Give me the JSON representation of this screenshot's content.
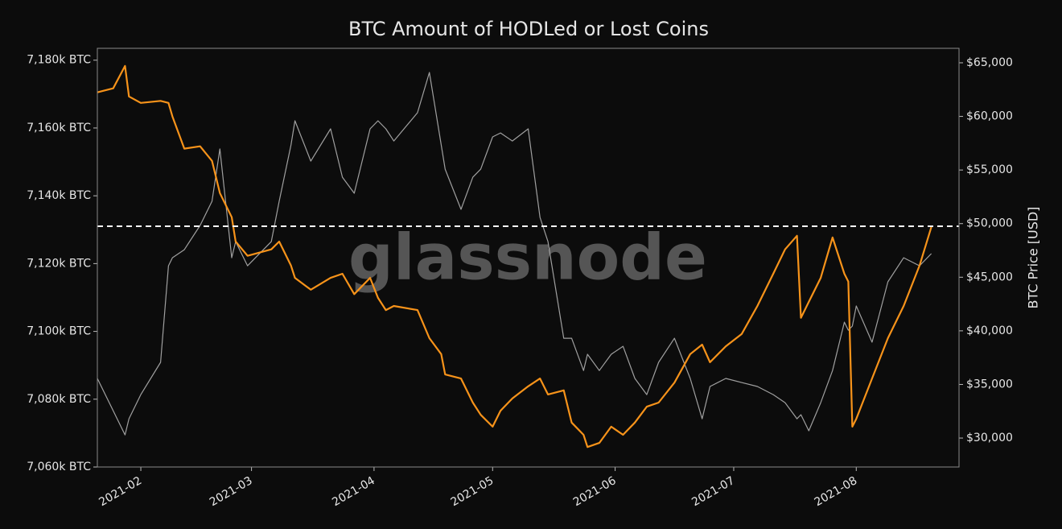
{
  "chart_data": {
    "type": "line",
    "title": "BTC Amount of HODLed or Lost Coins",
    "watermark": "glassnode",
    "y2label": "BTC Price [USD]",
    "x": [
      "2021-01-21",
      "2021-01-25",
      "2021-01-28",
      "2021-01-29",
      "2021-02-01",
      "2021-02-06",
      "2021-02-08",
      "2021-02-09",
      "2021-02-12",
      "2021-02-16",
      "2021-02-19",
      "2021-02-21",
      "2021-02-24",
      "2021-02-25",
      "2021-02-28",
      "2021-03-06",
      "2021-03-08",
      "2021-03-11",
      "2021-03-12",
      "2021-03-16",
      "2021-03-21",
      "2021-03-24",
      "2021-03-27",
      "2021-03-31",
      "2021-04-02",
      "2021-04-04",
      "2021-04-06",
      "2021-04-12",
      "2021-04-15",
      "2021-04-18",
      "2021-04-19",
      "2021-04-23",
      "2021-04-26",
      "2021-04-28",
      "2021-05-01",
      "2021-05-03",
      "2021-05-06",
      "2021-05-10",
      "2021-05-13",
      "2021-05-15",
      "2021-05-19",
      "2021-05-21",
      "2021-05-24",
      "2021-05-25",
      "2021-05-28",
      "2021-05-31",
      "2021-06-03",
      "2021-06-06",
      "2021-06-09",
      "2021-06-12",
      "2021-06-16",
      "2021-06-20",
      "2021-06-23",
      "2021-06-25",
      "2021-06-29",
      "2021-07-03",
      "2021-07-07",
      "2021-07-11",
      "2021-07-14",
      "2021-07-17",
      "2021-07-18",
      "2021-07-20",
      "2021-07-23",
      "2021-07-26",
      "2021-07-29",
      "2021-07-30",
      "2021-07-31",
      "2021-08-01",
      "2021-08-05",
      "2021-08-09",
      "2021-08-13",
      "2021-08-17",
      "2021-08-20"
    ],
    "series": [
      {
        "name": "BTC Price [USD]",
        "color": "#a0a0a0",
        "axis": "y2",
        "values": [
          35560,
          32550,
          30300,
          31800,
          34050,
          37060,
          46070,
          46820,
          47570,
          49830,
          52080,
          56960,
          46820,
          48320,
          46070,
          48320,
          52080,
          57340,
          59590,
          55830,
          58840,
          54330,
          52830,
          58840,
          59590,
          58840,
          57710,
          60340,
          64100,
          57340,
          55080,
          51330,
          54330,
          55080,
          58090,
          58460,
          57710,
          58840,
          50580,
          48320,
          39310,
          39310,
          36300,
          37810,
          36300,
          37810,
          38560,
          35560,
          34050,
          37060,
          39310,
          35560,
          31800,
          34810,
          35560,
          35180,
          34810,
          34050,
          33300,
          31800,
          32180,
          30680,
          33300,
          36300,
          40810,
          40060,
          40440,
          42320,
          38940,
          44570,
          46820,
          46070,
          47200
        ]
      },
      {
        "name": "HODLed or Lost Coins",
        "color": "#f7931a",
        "axis": "y",
        "values": [
          7170.5,
          7171.7,
          7178.3,
          7169.3,
          7167.4,
          7168,
          7167.4,
          7163.4,
          7153.9,
          7154.6,
          7150.3,
          7140.8,
          7133.7,
          7126.5,
          7122.3,
          7124.2,
          7126.5,
          7119.4,
          7115.8,
          7112.3,
          7115.8,
          7117,
          7111,
          7115.8,
          7109.9,
          7106.3,
          7107.5,
          7106.3,
          7098,
          7093.3,
          7087.3,
          7086.1,
          7079,
          7075.4,
          7071.9,
          7076.6,
          7080.2,
          7083.8,
          7086.1,
          7081.4,
          7082.6,
          7073.1,
          7069.5,
          7065.9,
          7067.1,
          7071.9,
          7069.5,
          7073.1,
          7077.8,
          7079,
          7084.9,
          7093.3,
          7096.1,
          7090.9,
          7095.6,
          7099.2,
          7107.5,
          7117,
          7124.2,
          7128.2,
          7104,
          7108.7,
          7115.8,
          7127.7,
          7117,
          7114.7,
          7071.9,
          7074.2,
          7086.1,
          7098,
          7107.5,
          7119.4,
          7130.8
        ]
      }
    ],
    "reference_line": 7131,
    "xlim": [
      "2021-01-21",
      "2021-08-27"
    ],
    "xticks": [
      {
        "value": "2021-02-01",
        "label": "2021-02"
      },
      {
        "value": "2021-03-01",
        "label": "2021-03"
      },
      {
        "value": "2021-04-01",
        "label": "2021-04"
      },
      {
        "value": "2021-05-01",
        "label": "2021-05"
      },
      {
        "value": "2021-06-01",
        "label": "2021-06"
      },
      {
        "value": "2021-07-01",
        "label": "2021-07"
      },
      {
        "value": "2021-08-01",
        "label": "2021-08"
      }
    ],
    "ylim": [
      7060,
      7183.5
    ],
    "yticks": [
      {
        "value": 7060,
        "label": "7,060k BTC"
      },
      {
        "value": 7080,
        "label": "7,080k BTC"
      },
      {
        "value": 7100,
        "label": "7,100k BTC"
      },
      {
        "value": 7120,
        "label": "7,120k BTC"
      },
      {
        "value": 7140,
        "label": "7,140k BTC"
      },
      {
        "value": 7160,
        "label": "7,160k BTC"
      },
      {
        "value": 7180,
        "label": "7,180k BTC"
      }
    ],
    "y2lim": [
      27300,
      66350
    ],
    "y2ticks": [
      {
        "value": 30000,
        "label": "$30,000"
      },
      {
        "value": 35000,
        "label": "$35,000"
      },
      {
        "value": 40000,
        "label": "$40,000"
      },
      {
        "value": 45000,
        "label": "$45,000"
      },
      {
        "value": 50000,
        "label": "$50,000"
      },
      {
        "value": 55000,
        "label": "$55,000"
      },
      {
        "value": 60000,
        "label": "$60,000"
      },
      {
        "value": 65000,
        "label": "$65,000"
      }
    ],
    "grid": false
  }
}
